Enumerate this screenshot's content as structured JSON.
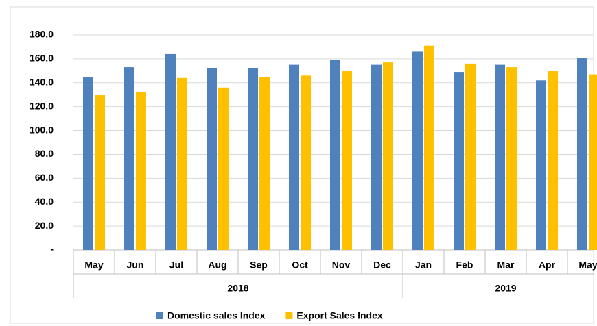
{
  "chart_data": {
    "type": "bar",
    "categories": [
      "May",
      "Jun",
      "Jul",
      "Aug",
      "Sep",
      "Oct",
      "Nov",
      "Dec",
      "Jan",
      "Feb",
      "Mar",
      "Apr",
      "May"
    ],
    "category_groups": [
      {
        "label": "2018",
        "span": 8
      },
      {
        "label": "2019",
        "span": 5
      }
    ],
    "series": [
      {
        "name": "Domestic sales Index",
        "color": "#4f81bd",
        "values": [
          145,
          153,
          164,
          152,
          152,
          155,
          159,
          155,
          166,
          149,
          155,
          142,
          161
        ]
      },
      {
        "name": "Export Sales Index",
        "color": "#ffc000",
        "values": [
          130,
          132,
          144,
          136,
          145,
          146,
          150,
          157,
          171,
          156,
          153,
          150,
          147
        ]
      }
    ],
    "ylim": [
      0,
      180
    ],
    "yticks": [
      {
        "value": 0,
        "label": "-"
      },
      {
        "value": 20,
        "label": "20.0"
      },
      {
        "value": 40,
        "label": "40.0"
      },
      {
        "value": 60,
        "label": "60.0"
      },
      {
        "value": 80,
        "label": "80.0"
      },
      {
        "value": 100,
        "label": "100.0"
      },
      {
        "value": 120,
        "label": "120.0"
      },
      {
        "value": 140,
        "label": "140.0"
      },
      {
        "value": 160,
        "label": "160.0"
      },
      {
        "value": 180,
        "label": "180.0"
      }
    ],
    "grid": true,
    "legend": "bottom"
  }
}
